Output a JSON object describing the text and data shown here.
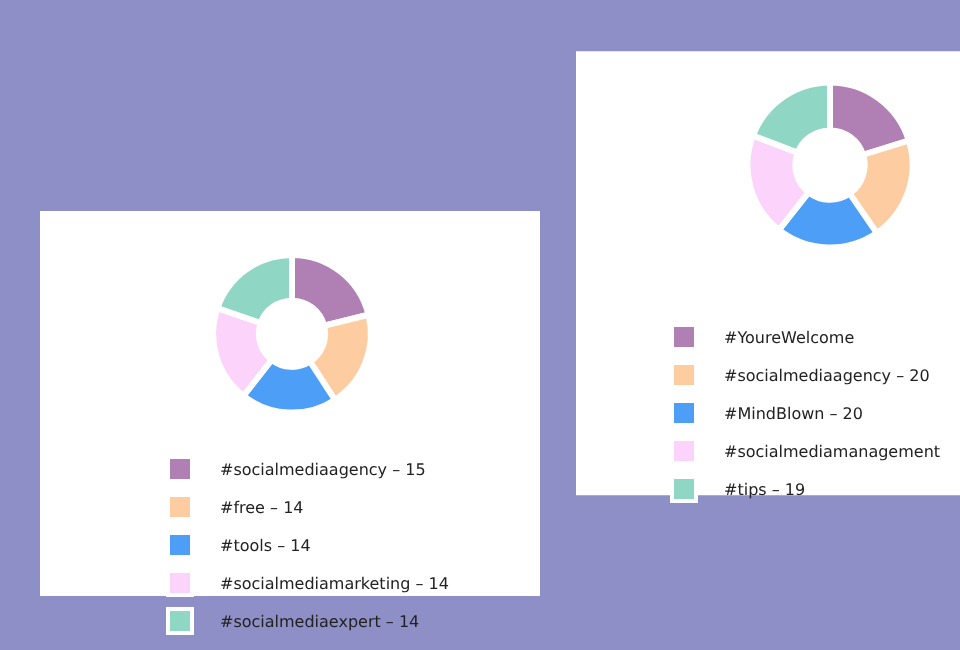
{
  "chart_data": [
    {
      "type": "donut",
      "categories": [
        "#socialmediaagency",
        "#free",
        "#tools",
        "#socialmediamarketing",
        "#socialmediaexpert"
      ],
      "values": [
        15,
        14,
        14,
        14,
        14
      ],
      "value_labels": [
        "15",
        "14",
        "14",
        "14",
        "14"
      ],
      "colors": [
        "#b07fb4",
        "#fdcca0",
        "#4d9ef6",
        "#fbd3fb",
        "#8fd6c4"
      ],
      "legend": "bottom"
    },
    {
      "type": "donut",
      "categories": [
        "#YoureWelcome",
        "#socialmediaagency",
        "#MindBlown",
        "#socialmediamanagement",
        "#tips"
      ],
      "values": [
        20,
        20,
        20,
        20,
        19
      ],
      "value_labels": [
        null,
        "20",
        "20",
        null,
        "19"
      ],
      "colors": [
        "#b07fb4",
        "#fdcca0",
        "#4d9ef6",
        "#fbd3fb",
        "#8fd6c4"
      ],
      "legend": "bottom"
    }
  ]
}
